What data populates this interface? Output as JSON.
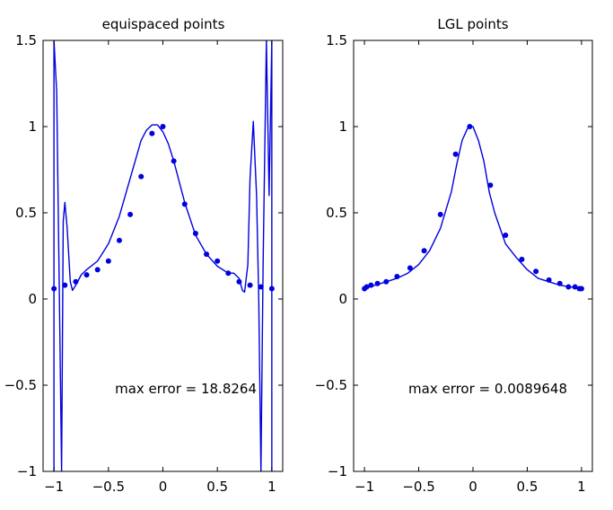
{
  "chart_data": [
    {
      "type": "line",
      "title": "equispaced points",
      "xlim": [
        -1.1,
        1.1
      ],
      "ylim": [
        -1,
        1.5
      ],
      "xticks": [
        -1,
        -0.5,
        0,
        0.5,
        1
      ],
      "xtick_labels": [
        "−1",
        "−0.5",
        "0",
        "0.5",
        "1"
      ],
      "yticks": [
        -1,
        -0.5,
        0,
        0.5,
        1,
        1.5
      ],
      "ytick_labels": [
        "−1",
        "−0.5",
        "0",
        "0.5",
        "1",
        "1.5"
      ],
      "annotation": "max error = 18.8264",
      "grid": false,
      "series": [
        {
          "kind": "line",
          "color": "#0000e0",
          "x": [
            -1.0,
            -1.0,
            -0.975,
            -0.95,
            -0.93,
            -0.915,
            -0.9,
            -0.88,
            -0.85,
            -0.83,
            -0.8,
            -0.75,
            -0.7,
            -0.6,
            -0.5,
            -0.4,
            -0.3,
            -0.2,
            -0.15,
            -0.1,
            -0.05,
            0.0,
            0.05,
            0.1,
            0.15,
            0.2,
            0.3,
            0.4,
            0.5,
            0.6,
            0.65,
            0.7,
            0.73,
            0.75,
            0.78,
            0.8,
            0.83,
            0.86,
            0.88,
            0.9,
            0.92,
            0.95,
            0.975,
            1.0,
            1.0
          ],
          "y": [
            -1.0,
            1.5,
            1.2,
            0.0,
            -1.0,
            0.45,
            0.56,
            0.42,
            0.1,
            0.05,
            0.08,
            0.14,
            0.17,
            0.22,
            0.32,
            0.48,
            0.7,
            0.92,
            0.98,
            1.01,
            1.01,
            0.97,
            0.9,
            0.8,
            0.68,
            0.56,
            0.37,
            0.26,
            0.19,
            0.15,
            0.15,
            0.12,
            0.05,
            0.04,
            0.2,
            0.7,
            1.03,
            0.6,
            0.0,
            -1.0,
            0.2,
            1.5,
            0.6,
            1.5,
            -1.0
          ]
        },
        {
          "kind": "markers",
          "color": "#0000e0",
          "x": [
            -1.0,
            -0.9,
            -0.8,
            -0.7,
            -0.6,
            -0.5,
            -0.4,
            -0.3,
            -0.2,
            -0.1,
            0.0,
            0.1,
            0.2,
            0.3,
            0.4,
            0.5,
            0.6,
            0.7,
            0.8,
            0.9,
            1.0
          ],
          "y": [
            0.06,
            0.08,
            0.1,
            0.14,
            0.17,
            0.22,
            0.34,
            0.49,
            0.71,
            0.96,
            1.0,
            0.8,
            0.55,
            0.38,
            0.26,
            0.22,
            0.15,
            0.1,
            0.08,
            0.07,
            0.06
          ]
        }
      ]
    },
    {
      "type": "line",
      "title": "LGL points",
      "xlim": [
        -1.1,
        1.1
      ],
      "ylim": [
        -1,
        1.5
      ],
      "xticks": [
        -1,
        -0.5,
        0,
        0.5,
        1
      ],
      "xtick_labels": [
        "−1",
        "−0.5",
        "0",
        "0.5",
        "1"
      ],
      "yticks": [
        -1,
        -0.5,
        0,
        0.5,
        1,
        1.5
      ],
      "ytick_labels": [
        "−1",
        "−0.5",
        "0",
        "0.5",
        "1",
        "1.5"
      ],
      "annotation": "max error = 0.0089648",
      "grid": false,
      "series": [
        {
          "kind": "line",
          "color": "#0000e0",
          "x": [
            -1.0,
            -0.9,
            -0.8,
            -0.7,
            -0.6,
            -0.5,
            -0.4,
            -0.3,
            -0.2,
            -0.15,
            -0.1,
            -0.05,
            0.0,
            0.05,
            0.1,
            0.15,
            0.2,
            0.3,
            0.4,
            0.5,
            0.6,
            0.7,
            0.8,
            0.9,
            1.0
          ],
          "y": [
            0.06,
            0.08,
            0.1,
            0.12,
            0.15,
            0.2,
            0.28,
            0.41,
            0.62,
            0.78,
            0.92,
            0.99,
            1.0,
            0.92,
            0.8,
            0.62,
            0.5,
            0.32,
            0.24,
            0.17,
            0.12,
            0.1,
            0.08,
            0.07,
            0.06
          ]
        },
        {
          "kind": "markers",
          "color": "#0000e0",
          "x": [
            -1.0,
            -0.98,
            -0.94,
            -0.88,
            -0.8,
            -0.7,
            -0.58,
            -0.45,
            -0.3,
            -0.16,
            -0.03,
            0.16,
            0.3,
            0.45,
            0.58,
            0.7,
            0.8,
            0.88,
            0.94,
            0.98,
            1.0
          ],
          "y": [
            0.06,
            0.07,
            0.08,
            0.09,
            0.1,
            0.13,
            0.18,
            0.28,
            0.49,
            0.84,
            1.0,
            0.66,
            0.37,
            0.23,
            0.16,
            0.11,
            0.09,
            0.07,
            0.07,
            0.06,
            0.06
          ]
        }
      ]
    }
  ]
}
